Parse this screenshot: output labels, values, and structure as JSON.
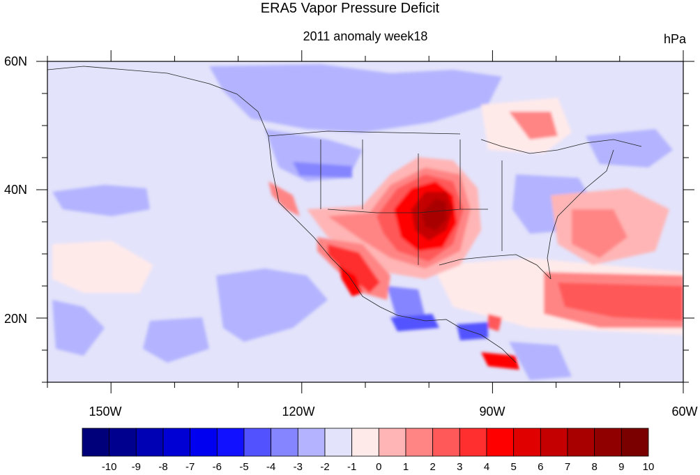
{
  "title": "ERA5 Vapor Pressure Deficit",
  "subtitle": "2011 anomaly week18",
  "units": "hPa",
  "map": {
    "lat_ticks": [
      "60N",
      "40N",
      "20N"
    ],
    "lon_ticks": [
      "150W",
      "120W",
      "90W",
      "60W"
    ],
    "lat_range": [
      10,
      60
    ],
    "lon_range": [
      -160,
      -60
    ]
  },
  "colorbar": {
    "labels": [
      "-10",
      "-9",
      "-8",
      "-7",
      "-6",
      "-5",
      "-4",
      "-3",
      "-2",
      "-1",
      "0",
      "1",
      "2",
      "3",
      "4",
      "5",
      "6",
      "7",
      "8",
      "9",
      "10"
    ],
    "colors": [
      "#00007a",
      "#00008f",
      "#0000b4",
      "#0000d4",
      "#0000f0",
      "#1111ff",
      "#5252ff",
      "#8585ff",
      "#b3b3ff",
      "#e3e3fb",
      "#ffeaea",
      "#ffb5b5",
      "#ff8585",
      "#ff5959",
      "#ff2f2f",
      "#ff0000",
      "#e00000",
      "#c40000",
      "#a80000",
      "#900000",
      "#7a0000"
    ]
  }
}
